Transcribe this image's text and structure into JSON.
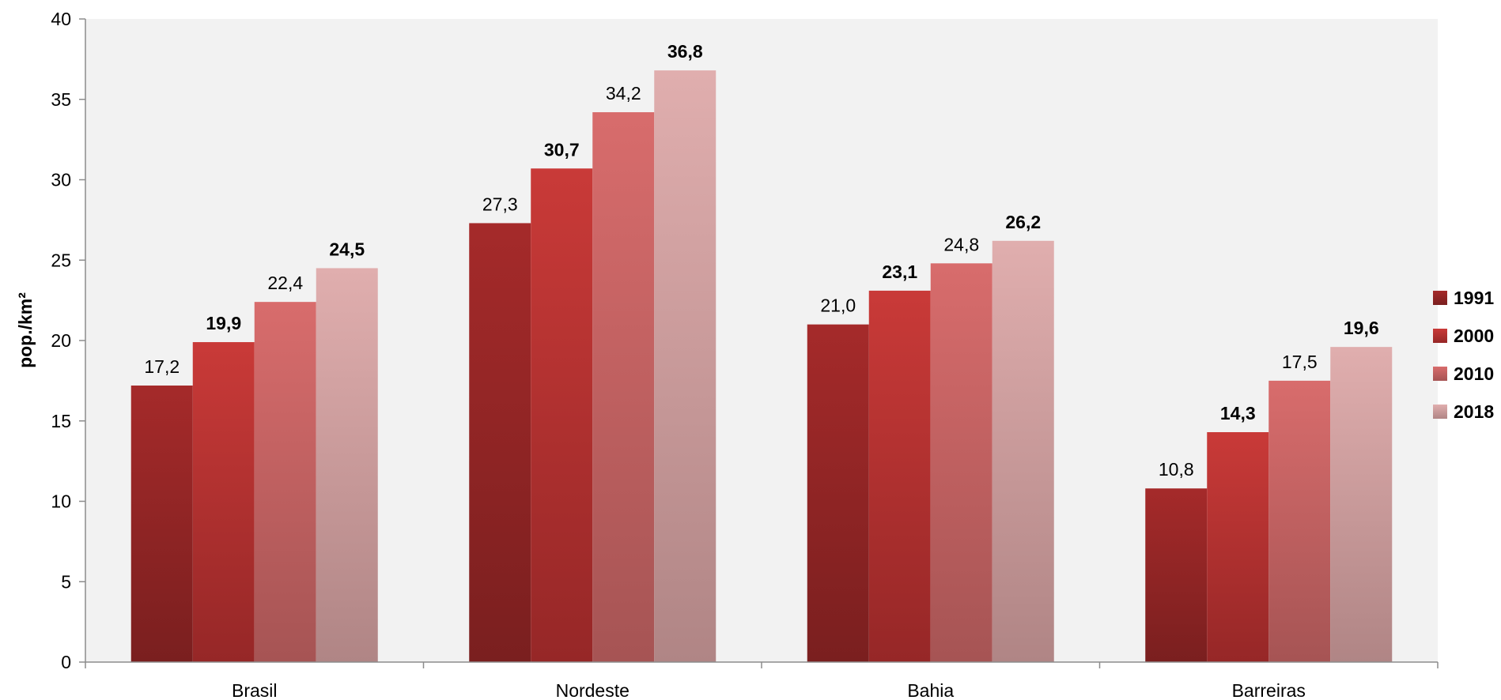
{
  "chart_data": {
    "type": "bar",
    "categories": [
      "Brasil",
      "Nordeste",
      "Bahia",
      "Barreiras"
    ],
    "series": [
      {
        "name": "1991",
        "values": [
          17.2,
          27.3,
          21.0,
          10.8
        ],
        "color_top": "#a52a2a",
        "color_bottom": "#7a1f1f",
        "label_bold": false
      },
      {
        "name": "2000",
        "values": [
          19.9,
          30.7,
          23.1,
          14.3
        ],
        "color_top": "#c93a38",
        "color_bottom": "#962727",
        "label_bold": true
      },
      {
        "name": "2010",
        "values": [
          22.4,
          34.2,
          24.8,
          17.5
        ],
        "color_top": "#d86c6c",
        "color_bottom": "#a65454",
        "label_bold": false
      },
      {
        "name": "2018",
        "values": [
          24.5,
          36.8,
          26.2,
          19.6
        ],
        "color_top": "#e0aeae",
        "color_bottom": "#b08585",
        "label_bold": true
      }
    ],
    "data_labels": [
      [
        "17,2",
        "27,3",
        "21,0",
        "10,8"
      ],
      [
        "19,9",
        "30,7",
        "23,1",
        "14,3"
      ],
      [
        "22,4",
        "34,2",
        "24,8",
        "17,5"
      ],
      [
        "24,5",
        "36,8",
        "26,2",
        "19,6"
      ]
    ],
    "title": "",
    "xlabel": "",
    "ylabel": "pop./km²",
    "ylim": [
      0,
      40
    ],
    "yticks": [
      0,
      5,
      10,
      15,
      20,
      25,
      30,
      35,
      40
    ],
    "grid": false,
    "legend_position": "right",
    "plot_background": "#f2f2f2"
  }
}
